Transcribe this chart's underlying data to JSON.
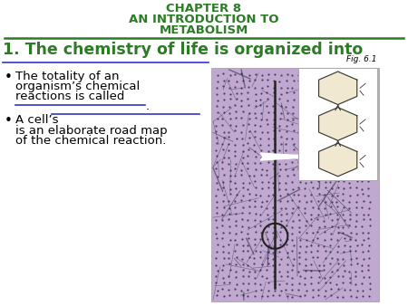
{
  "bg_color": "#ffffff",
  "title_line1": "CHAPTER 8",
  "title_line2": "AN INTRODUCTION TO",
  "title_line3": "METABOLISM",
  "title_color": "#2d7a27",
  "heading_text": "1. The chemistry of life is organized into",
  "heading_color": "#2d7a27",
  "bullet1_line1": "The totality of an",
  "bullet1_line2": "organism’s chemical",
  "bullet1_line3": "reactions is called",
  "blank1": "_________________.",
  "bullet2_pre": "A cell’s",
  "blank2": "________________",
  "bullet2_line2": "is an elaborate road map",
  "bullet2_line3": "of the chemical reaction.",
  "bullet_color": "#000000",
  "fig_label": "Fig. 6.1",
  "title_underline_color": "#2d7a27",
  "blank_underline_color": "#3333cc",
  "map_color": "#c0a8d0",
  "map_dot_color": "#000000",
  "map_line_color": "#555555",
  "inset_bg": "#ffffff"
}
